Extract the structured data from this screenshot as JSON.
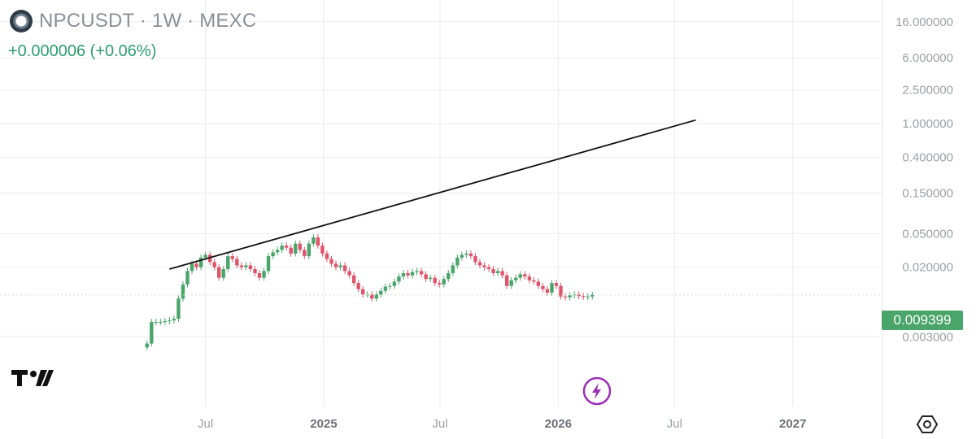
{
  "header": {
    "title": "NPCUSDT · 1W · MEXC",
    "change": "+0.000006 (+0.06%)"
  },
  "price_tag": "0.009399",
  "icons": {
    "logo": "token-logo-icon",
    "tradingview": "tradingview-logo-icon",
    "bolt": "lightning-bolt-icon",
    "settings": "settings-hexagon-icon"
  },
  "colors": {
    "up": "#4aa56a",
    "down": "#e0546b",
    "trendline": "#111111",
    "grid": "#e9ebef",
    "axis_text": "#9aa0a8",
    "accent_purple": "#9b2fb5"
  },
  "chart_data": {
    "type": "candlestick",
    "title": "NPCUSDT · 1W · MEXC",
    "y_scale": "log",
    "y_ticks": [
      "16.000000",
      "6.000000",
      "2.500000",
      "1.000000",
      "0.400000",
      "0.150000",
      "0.050000",
      "0.020000",
      "0.003000"
    ],
    "x_ticks": [
      "Jul",
      "2025",
      "Jul",
      "2026",
      "Jul",
      "2027"
    ],
    "x_range": [
      "2024-04-01",
      "2027-07-01"
    ],
    "grid": true,
    "current_price": 0.009399,
    "series": [
      {
        "values": [
          0.0025,
          0.0045,
          0.0045,
          0.0045,
          0.0046,
          0.0047,
          0.0049,
          0.0085,
          0.0125,
          0.018,
          0.022,
          0.02,
          0.026,
          0.028,
          0.023,
          0.02,
          0.015,
          0.019,
          0.027,
          0.025,
          0.021,
          0.02,
          0.021,
          0.019,
          0.017,
          0.015,
          0.018,
          0.027,
          0.03,
          0.032,
          0.036,
          0.034,
          0.029,
          0.038,
          0.032,
          0.027,
          0.038,
          0.045,
          0.036,
          0.029,
          0.025,
          0.022,
          0.02,
          0.021,
          0.018,
          0.016,
          0.013,
          0.011,
          0.0095,
          0.0095,
          0.0085,
          0.0095,
          0.0105,
          0.0118,
          0.012,
          0.0135,
          0.0155,
          0.017,
          0.016,
          0.0175,
          0.018,
          0.0165,
          0.0145,
          0.015,
          0.013,
          0.0125,
          0.0145,
          0.017,
          0.021,
          0.026,
          0.028,
          0.029,
          0.027,
          0.023,
          0.021,
          0.02,
          0.019,
          0.017,
          0.018,
          0.016,
          0.012,
          0.014,
          0.015,
          0.0165,
          0.0155,
          0.014,
          0.0135,
          0.012,
          0.011,
          0.01,
          0.013,
          0.012,
          0.009,
          0.0088,
          0.0093,
          0.0095,
          0.0091,
          0.0089,
          0.009,
          0.0094
        ]
      }
    ],
    "trendline": {
      "start": {
        "date": "2024-05-06",
        "value": 0.019
      },
      "end": {
        "date": "2026-08-03",
        "value": 1.1
      }
    }
  }
}
